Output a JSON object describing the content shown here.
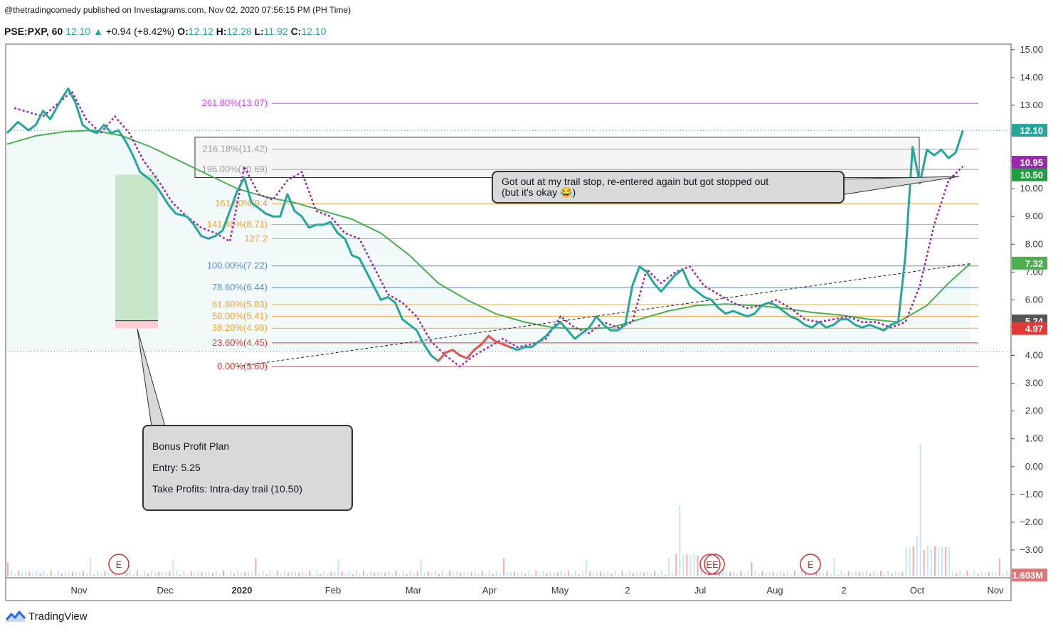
{
  "header": {
    "published": "@thetradingcomedy published on Investagrams.com, Nov 02, 2020 07:56:15 PM (PH Time)",
    "symbol": "PSE:PXP, 60",
    "last": "12.10",
    "change": "+0.94 (+8.42%)",
    "open_label": "O:",
    "open": "12.12",
    "high_label": "H:",
    "high": "12.28",
    "low_label": "L:",
    "low": "11.92",
    "close_label": "C:",
    "close": "12.10"
  },
  "brand": {
    "name": "TradingView"
  },
  "callouts": {
    "trail": "Got out at my trail stop, re-entered again but got stopped out\n(but it's okay 😂)",
    "bonus_title": "Bonus Profit Plan",
    "bonus_entry": "Entry: 5.25",
    "bonus_tp": "Take Profits: Intra-day trail (10.50)"
  },
  "colors": {
    "price": "#26a69a",
    "ma": "#4caf50",
    "trail": "#9c27b0",
    "ext": "#e040fb",
    "fib_orange": "#f7a534",
    "fib_blue": "#5b8fd1",
    "fib_red": "#e53935",
    "volume": "#29b6f6"
  },
  "chart_data": {
    "type": "line",
    "symbol": "PSE:PXP",
    "interval": "60",
    "ylim": [
      -4.0,
      15.2
    ],
    "y_ticks": [
      "15.00",
      "14.00",
      "13.00",
      "12.00",
      "11.00",
      "10.00",
      "9.00",
      "8.00",
      "7.00",
      "6.00",
      "5.00",
      "4.00",
      "3.00",
      "2.00",
      "1.00",
      "0.00",
      "−1.00",
      "−2.00",
      "−3.00"
    ],
    "x_labels": [
      "Nov",
      "Dec",
      "2020",
      "Feb",
      "Mar",
      "Apr",
      "May",
      "2",
      "Jul",
      "Aug",
      "2",
      "Oct",
      "Nov"
    ],
    "price_series": [
      [
        0,
        12.0
      ],
      [
        3,
        12.4
      ],
      [
        6,
        12.1
      ],
      [
        8,
        12.3
      ],
      [
        10,
        12.8
      ],
      [
        12,
        12.5
      ],
      [
        15,
        13.2
      ],
      [
        17,
        13.6
      ],
      [
        19,
        13.1
      ],
      [
        21,
        12.3
      ],
      [
        23,
        12.1
      ],
      [
        25,
        12.0
      ],
      [
        27,
        12.3
      ],
      [
        29,
        12.0
      ],
      [
        31,
        12.1
      ],
      [
        33,
        11.7
      ],
      [
        35,
        11.2
      ],
      [
        37,
        10.6
      ],
      [
        40,
        10.3
      ],
      [
        42,
        10.0
      ],
      [
        45,
        9.4
      ],
      [
        47,
        9.1
      ],
      [
        50,
        9.0
      ],
      [
        52,
        8.7
      ],
      [
        54,
        8.3
      ],
      [
        56,
        8.2
      ],
      [
        58,
        8.3
      ],
      [
        60,
        8.5
      ],
      [
        62,
        9.2
      ],
      [
        64,
        9.9
      ],
      [
        66,
        10.4
      ],
      [
        68,
        9.5
      ],
      [
        70,
        9.3
      ],
      [
        72,
        9.1
      ],
      [
        74,
        9.0
      ],
      [
        76,
        9.0
      ],
      [
        78,
        9.8
      ],
      [
        80,
        9.2
      ],
      [
        82,
        9.0
      ],
      [
        84,
        8.6
      ],
      [
        86,
        8.7
      ],
      [
        88,
        8.7
      ],
      [
        90,
        8.8
      ],
      [
        92,
        8.4
      ],
      [
        94,
        8.2
      ],
      [
        96,
        7.6
      ],
      [
        98,
        7.5
      ],
      [
        100,
        7.0
      ],
      [
        102,
        6.5
      ],
      [
        104,
        6.0
      ],
      [
        106,
        6.1
      ],
      [
        108,
        5.9
      ],
      [
        110,
        5.3
      ],
      [
        112,
        5.1
      ],
      [
        114,
        4.9
      ],
      [
        116,
        4.4
      ],
      [
        118,
        4.0
      ],
      [
        120,
        3.8
      ],
      [
        122,
        4.1
      ],
      [
        124,
        4.2
      ],
      [
        126,
        4.0
      ],
      [
        128,
        3.9
      ],
      [
        130,
        4.2
      ],
      [
        132,
        4.4
      ],
      [
        134,
        4.7
      ],
      [
        136,
        4.5
      ],
      [
        138,
        4.4
      ],
      [
        140,
        4.3
      ],
      [
        142,
        4.2
      ],
      [
        144,
        4.3
      ],
      [
        146,
        4.3
      ],
      [
        148,
        4.5
      ],
      [
        150,
        4.7
      ],
      [
        152,
        5.0
      ],
      [
        154,
        5.2
      ],
      [
        156,
        4.9
      ],
      [
        158,
        4.6
      ],
      [
        160,
        4.8
      ],
      [
        162,
        5.0
      ],
      [
        164,
        5.4
      ],
      [
        166,
        5.1
      ],
      [
        168,
        4.9
      ],
      [
        170,
        4.9
      ],
      [
        172,
        5.1
      ],
      [
        174,
        6.5
      ],
      [
        176,
        7.2
      ],
      [
        178,
        7.0
      ],
      [
        180,
        6.6
      ],
      [
        182,
        6.3
      ],
      [
        184,
        6.6
      ],
      [
        186,
        6.9
      ],
      [
        188,
        7.1
      ],
      [
        190,
        6.5
      ],
      [
        192,
        6.3
      ],
      [
        194,
        6.1
      ],
      [
        196,
        6.0
      ],
      [
        198,
        5.7
      ],
      [
        200,
        5.5
      ],
      [
        202,
        5.6
      ],
      [
        204,
        5.5
      ],
      [
        206,
        5.4
      ],
      [
        208,
        5.5
      ],
      [
        210,
        5.8
      ],
      [
        212,
        5.9
      ],
      [
        214,
        5.8
      ],
      [
        216,
        5.6
      ],
      [
        218,
        5.4
      ],
      [
        220,
        5.3
      ],
      [
        222,
        5.1
      ],
      [
        224,
        5.0
      ],
      [
        226,
        5.2
      ],
      [
        228,
        5.0
      ],
      [
        230,
        5.1
      ],
      [
        232,
        5.3
      ],
      [
        234,
        5.3
      ],
      [
        236,
        5.1
      ],
      [
        238,
        5.0
      ],
      [
        240,
        5.1
      ],
      [
        242,
        5.0
      ],
      [
        244,
        4.9
      ],
      [
        246,
        5.1
      ],
      [
        248,
        5.2
      ],
      [
        250,
        7.6
      ],
      [
        252,
        11.5
      ],
      [
        254,
        10.2
      ],
      [
        256,
        11.4
      ],
      [
        258,
        11.2
      ],
      [
        260,
        11.4
      ],
      [
        262,
        11.1
      ],
      [
        264,
        11.3
      ],
      [
        266,
        12.1
      ]
    ],
    "ma_series": [
      [
        0,
        11.6
      ],
      [
        8,
        11.9
      ],
      [
        16,
        12.05
      ],
      [
        24,
        12.1
      ],
      [
        32,
        11.9
      ],
      [
        40,
        11.5
      ],
      [
        48,
        11.0
      ],
      [
        56,
        10.5
      ],
      [
        64,
        10.0
      ],
      [
        72,
        9.7
      ],
      [
        80,
        9.5
      ],
      [
        88,
        9.2
      ],
      [
        96,
        8.9
      ],
      [
        104,
        8.4
      ],
      [
        112,
        7.6
      ],
      [
        120,
        6.6
      ],
      [
        128,
        6.0
      ],
      [
        136,
        5.5
      ],
      [
        144,
        5.2
      ],
      [
        152,
        5.0
      ],
      [
        160,
        4.95
      ],
      [
        168,
        5.0
      ],
      [
        176,
        5.3
      ],
      [
        184,
        5.6
      ],
      [
        192,
        5.8
      ],
      [
        200,
        5.85
      ],
      [
        208,
        5.8
      ],
      [
        216,
        5.7
      ],
      [
        224,
        5.55
      ],
      [
        232,
        5.45
      ],
      [
        240,
        5.3
      ],
      [
        248,
        5.2
      ],
      [
        256,
        5.8
      ],
      [
        262,
        6.6
      ],
      [
        268,
        7.3
      ]
    ],
    "trail_series": [
      [
        2,
        12.9
      ],
      [
        10,
        12.6
      ],
      [
        18,
        13.5
      ],
      [
        22,
        12.5
      ],
      [
        26,
        12.0
      ],
      [
        30,
        12.6
      ],
      [
        34,
        12.0
      ],
      [
        38,
        11.0
      ],
      [
        42,
        10.3
      ],
      [
        46,
        9.5
      ],
      [
        50,
        9.0
      ],
      [
        54,
        8.6
      ],
      [
        58,
        8.4
      ],
      [
        62,
        8.1
      ],
      [
        66,
        10.8
      ],
      [
        70,
        9.8
      ],
      [
        74,
        9.6
      ],
      [
        78,
        10.3
      ],
      [
        82,
        10.6
      ],
      [
        86,
        9.2
      ],
      [
        90,
        9.0
      ],
      [
        94,
        8.4
      ],
      [
        98,
        8.2
      ],
      [
        102,
        7.2
      ],
      [
        106,
        6.2
      ],
      [
        110,
        5.9
      ],
      [
        114,
        5.4
      ],
      [
        118,
        4.5
      ],
      [
        122,
        4.0
      ],
      [
        126,
        3.6
      ],
      [
        130,
        4.0
      ],
      [
        134,
        4.3
      ],
      [
        138,
        4.6
      ],
      [
        142,
        4.3
      ],
      [
        146,
        4.4
      ],
      [
        150,
        4.6
      ],
      [
        154,
        5.4
      ],
      [
        158,
        5.0
      ],
      [
        162,
        4.8
      ],
      [
        166,
        5.2
      ],
      [
        170,
        5.0
      ],
      [
        174,
        5.2
      ],
      [
        178,
        7.1
      ],
      [
        182,
        6.6
      ],
      [
        186,
        7.0
      ],
      [
        190,
        7.2
      ],
      [
        194,
        6.5
      ],
      [
        198,
        6.2
      ],
      [
        202,
        5.9
      ],
      [
        206,
        5.7
      ],
      [
        210,
        5.8
      ],
      [
        214,
        6.0
      ],
      [
        218,
        5.7
      ],
      [
        222,
        5.3
      ],
      [
        226,
        5.2
      ],
      [
        230,
        5.3
      ],
      [
        234,
        5.4
      ],
      [
        238,
        5.2
      ],
      [
        242,
        5.2
      ],
      [
        246,
        5.0
      ],
      [
        250,
        5.2
      ],
      [
        254,
        6.5
      ],
      [
        258,
        8.7
      ],
      [
        262,
        10.3
      ],
      [
        266,
        10.8
      ]
    ],
    "fib_levels": [
      {
        "label": "261.80%(13.07)",
        "value": 13.07
      },
      {
        "label": "216.18%(11.42)",
        "value": 11.42
      },
      {
        "label": "196.00%(10.69)",
        "value": 10.69
      },
      {
        "label": "161.80%(9.4",
        "value": 9.46
      },
      {
        "label": "141.40%(8.71)",
        "value": 8.71
      },
      {
        "label": "127.2",
        "value": 8.2
      },
      {
        "label": "100.00%(7.22)",
        "value": 7.22
      },
      {
        "label": "78.60%(6.44)",
        "value": 6.44
      },
      {
        "label": "61.80%(5.83)",
        "value": 5.83
      },
      {
        "label": "50.00%(5.41)",
        "value": 5.41
      },
      {
        "label": "38.20%(4.98)",
        "value": 4.98
      },
      {
        "label": "23.60%(4.45)",
        "value": 4.45
      },
      {
        "label": "0.00%(3.60)",
        "value": 3.6
      }
    ],
    "price_badges": [
      {
        "label": "12.10",
        "value": 12.1,
        "color": "#26a69a"
      },
      {
        "label": "10.95",
        "value": 10.95,
        "color": "#9c27b0"
      },
      {
        "label": "10.50",
        "value": 10.5,
        "color": "#1e9e3e"
      },
      {
        "label": "7.32",
        "value": 7.32,
        "color": "#4caf50"
      },
      {
        "label": "5.24",
        "value": 5.24,
        "color": "#555555"
      },
      {
        "label": "4.97",
        "value": 4.97,
        "color": "#e53935"
      },
      {
        "label": "1.603M",
        "value": -3.9,
        "color": "#e57373"
      }
    ],
    "earnings_markers": [
      {
        "label": "E"
      },
      {
        "label": "EE"
      },
      {
        "label": "E"
      }
    ],
    "trendline": {
      "from": [
        64,
        3.6
      ],
      "to": [
        268,
        7.3
      ]
    },
    "position": {
      "entry": 5.25,
      "target": 10.5,
      "stop": 4.97
    }
  }
}
